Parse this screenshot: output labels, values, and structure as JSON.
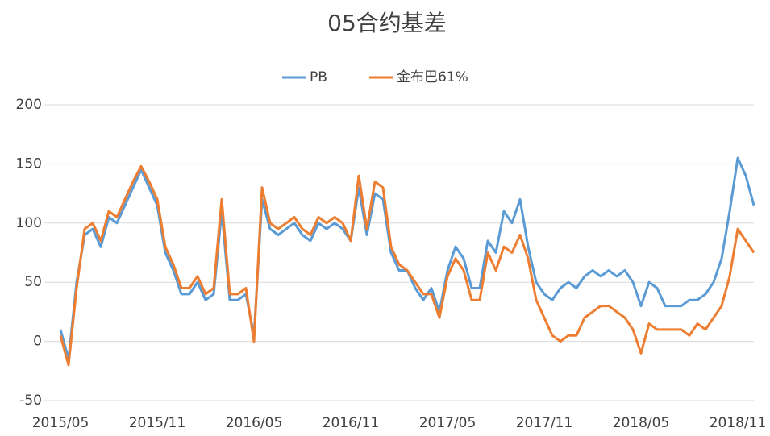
{
  "chart_data": {
    "type": "line",
    "title": "05合约基差",
    "categories": [
      "2015/05",
      null,
      null,
      null,
      null,
      null,
      null,
      null,
      null,
      null,
      null,
      null,
      "2015/11",
      null,
      null,
      null,
      null,
      null,
      null,
      null,
      null,
      null,
      null,
      null,
      "2016/05",
      null,
      null,
      null,
      null,
      null,
      null,
      null,
      null,
      null,
      null,
      null,
      "2016/11",
      null,
      null,
      null,
      null,
      null,
      null,
      null,
      null,
      null,
      null,
      null,
      "2017/05",
      null,
      null,
      null,
      null,
      null,
      null,
      null,
      null,
      null,
      null,
      null,
      "2017/11",
      null,
      null,
      null,
      null,
      null,
      null,
      null,
      null,
      null,
      null,
      null,
      "2018/05",
      null,
      null,
      null,
      null,
      null,
      null,
      null,
      null,
      null,
      null,
      null,
      "2018/11",
      null,
      null
    ],
    "series": [
      {
        "name": "PB",
        "color": "#5b9bd5",
        "values": [
          10,
          -15,
          50,
          90,
          95,
          80,
          105,
          100,
          115,
          130,
          145,
          130,
          115,
          75,
          60,
          40,
          40,
          50,
          35,
          40,
          110,
          35,
          35,
          40,
          5,
          120,
          95,
          90,
          95,
          100,
          90,
          85,
          100,
          95,
          100,
          95,
          85,
          130,
          90,
          125,
          120,
          75,
          60,
          60,
          45,
          35,
          45,
          25,
          60,
          80,
          70,
          45,
          45,
          85,
          75,
          110,
          100,
          120,
          80,
          50,
          40,
          35,
          45,
          50,
          45,
          55,
          60,
          55,
          60,
          55,
          60,
          50,
          30,
          50,
          45,
          30,
          30,
          30,
          35,
          35,
          40,
          50,
          70,
          110,
          155,
          140,
          115
        ]
      },
      {
        "name": "金布巴61%",
        "color": "#ed7d31",
        "values": [
          5,
          -20,
          45,
          95,
          100,
          85,
          110,
          105,
          120,
          135,
          148,
          135,
          120,
          80,
          65,
          45,
          45,
          55,
          40,
          45,
          120,
          40,
          40,
          45,
          0,
          130,
          100,
          95,
          100,
          105,
          95,
          90,
          105,
          100,
          105,
          100,
          85,
          140,
          95,
          135,
          130,
          80,
          65,
          60,
          50,
          40,
          40,
          20,
          55,
          70,
          60,
          35,
          35,
          75,
          60,
          80,
          75,
          90,
          70,
          35,
          20,
          5,
          0,
          5,
          5,
          20,
          25,
          30,
          30,
          25,
          20,
          10,
          -10,
          15,
          10,
          10,
          10,
          10,
          5,
          15,
          10,
          20,
          30,
          55,
          95,
          85,
          75
        ]
      }
    ],
    "ylim": [
      -50,
      200
    ],
    "yticks": [
      -50,
      0,
      50,
      100,
      150,
      200
    ],
    "grid": true,
    "legend": "top"
  }
}
